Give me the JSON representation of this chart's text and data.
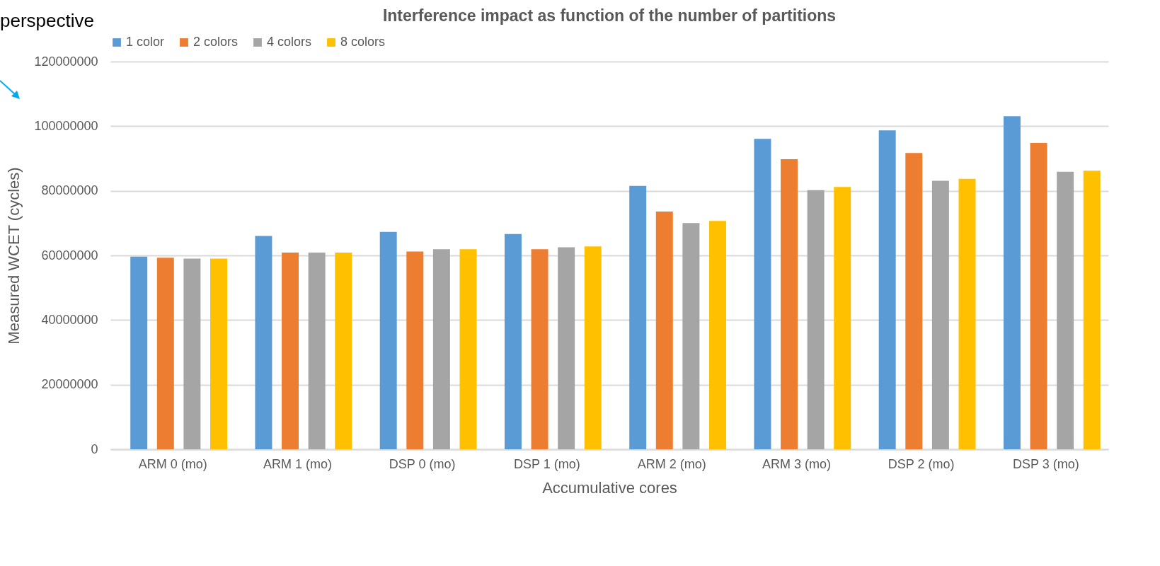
{
  "chart_data": {
    "type": "bar",
    "title": "Interference impact as function of the number of partitions",
    "xlabel": "Accumulative cores",
    "ylabel": "Measured WCET (cycles)",
    "categories": [
      "ARM 0 (mo)",
      "ARM 1 (mo)",
      "DSP 0 (mo)",
      "DSP 1 (mo)",
      "ARM 2 (mo)",
      "ARM 3 (mo)",
      "DSP 2 (mo)",
      "DSP 3 (mo)"
    ],
    "series": [
      {
        "name": "1 color",
        "color": "#5b9bd5",
        "values": [
          59600000,
          66000000,
          67300000,
          66600000,
          81500000,
          96100000,
          98700000,
          103100000
        ]
      },
      {
        "name": "2 colors",
        "color": "#ed7d31",
        "values": [
          59300000,
          60900000,
          61200000,
          61900000,
          73600000,
          89800000,
          91700000,
          94800000
        ]
      },
      {
        "name": "4 colors",
        "color": "#a5a5a5",
        "values": [
          59000000,
          60900000,
          61900000,
          62500000,
          70000000,
          80200000,
          83100000,
          85900000
        ]
      },
      {
        "name": "8 colors",
        "color": "#ffc000",
        "values": [
          59000000,
          60900000,
          61900000,
          62800000,
          70700000,
          81200000,
          83700000,
          86200000
        ]
      }
    ],
    "ylim": [
      0,
      120000000
    ],
    "yticks": [
      0,
      20000000,
      40000000,
      60000000,
      80000000,
      100000000,
      120000000
    ],
    "grid": "y",
    "legend": "top",
    "annotations": [
      "perspective"
    ]
  }
}
